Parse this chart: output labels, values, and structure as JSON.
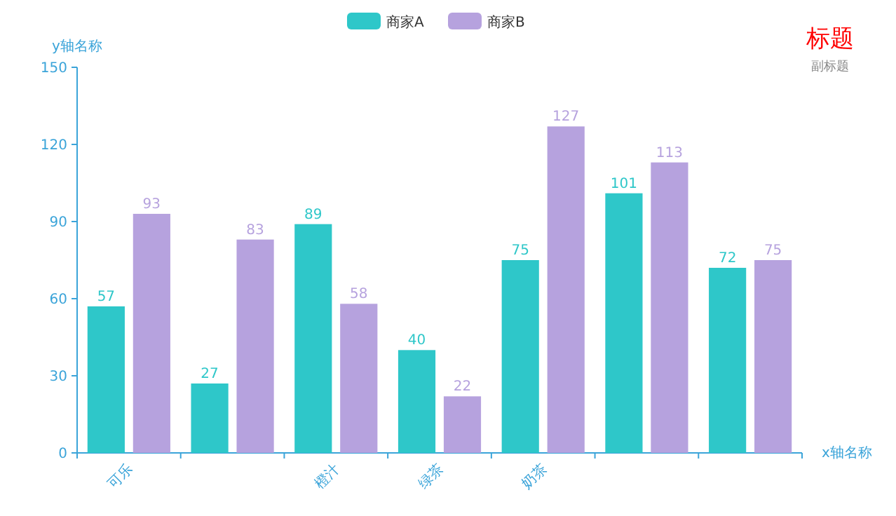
{
  "chart_data": {
    "type": "bar",
    "title": "标题",
    "subtitle": "副标题",
    "xlabel": "x轴名称",
    "ylabel": "y轴名称",
    "categories": [
      "可乐",
      null,
      "橙汁",
      "绿茶",
      "奶茶",
      null,
      null
    ],
    "series": [
      {
        "name": "商家A",
        "color": "#2ec7c9",
        "values": [
          57,
          27,
          89,
          40,
          75,
          101,
          72
        ]
      },
      {
        "name": "商家B",
        "color": "#b6a2de",
        "values": [
          93,
          83,
          58,
          22,
          127,
          113,
          75
        ]
      }
    ],
    "ylim": [
      0,
      150
    ],
    "yticks": [
      0,
      30,
      60,
      90,
      120,
      150
    ],
    "data_labels": true,
    "legend": "top"
  }
}
